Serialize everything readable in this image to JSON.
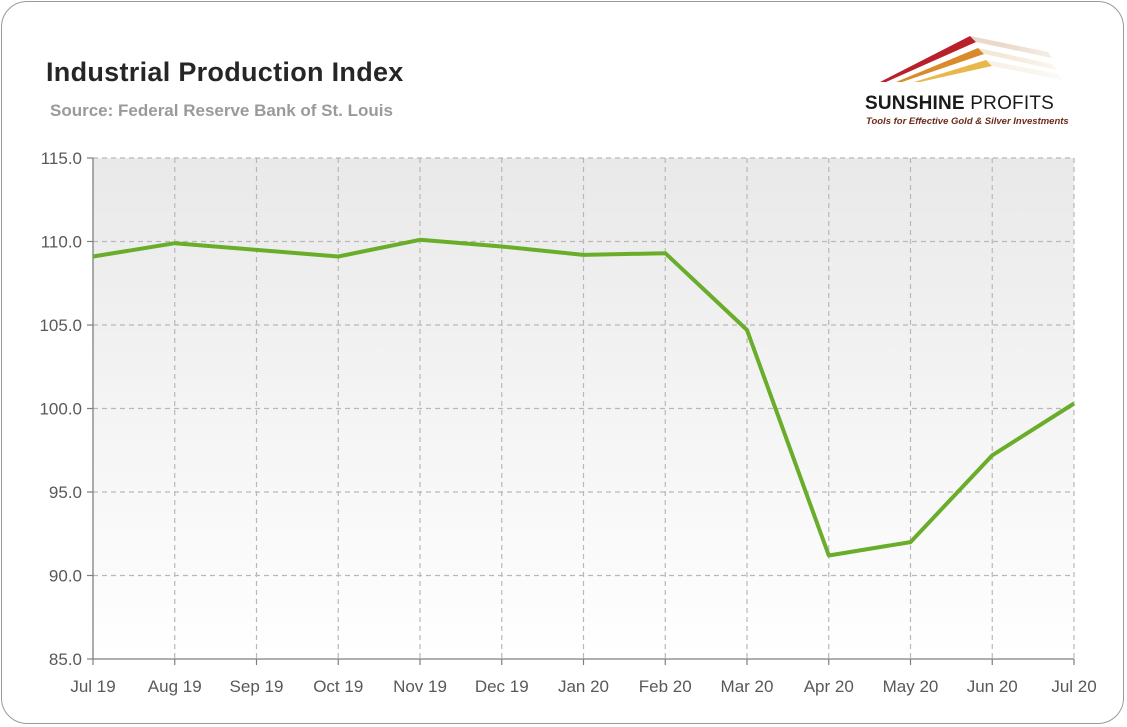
{
  "header": {
    "title": "Industrial Production Index",
    "subtitle": "Source: Federal Reserve Bank of St. Louis"
  },
  "logo": {
    "name_bold": "SUNSHINE",
    "name_light": " PROFITS",
    "tagline": "Tools for Effective Gold & Silver Investments"
  },
  "colors": {
    "line": "#6aad2b",
    "grid": "#b8b8b8",
    "plot_background_top": "#e9e9e9",
    "plot_background_bottom": "#ffffff"
  },
  "chart_data": {
    "type": "line",
    "title": "Industrial Production Index",
    "subtitle": "Source: Federal Reserve Bank of St. Louis",
    "xlabel": "",
    "ylabel": "",
    "categories": [
      "Jul 19",
      "Aug 19",
      "Sep 19",
      "Oct 19",
      "Nov 19",
      "Dec 19",
      "Jan 20",
      "Feb 20",
      "Mar 20",
      "Apr 20",
      "May 20",
      "Jun 20",
      "Jul 20"
    ],
    "series": [
      {
        "values": [
          109.1,
          109.9,
          109.5,
          109.1,
          110.1,
          109.7,
          109.2,
          109.3,
          104.7,
          91.2,
          92.0,
          97.2,
          100.3
        ]
      }
    ],
    "ylim": [
      85.0,
      115.0
    ],
    "yticks": [
      "115.0",
      "110.0",
      "105.0",
      "100.0",
      "95.0",
      "90.0",
      "85.0"
    ],
    "grid": true,
    "legend": "none"
  }
}
